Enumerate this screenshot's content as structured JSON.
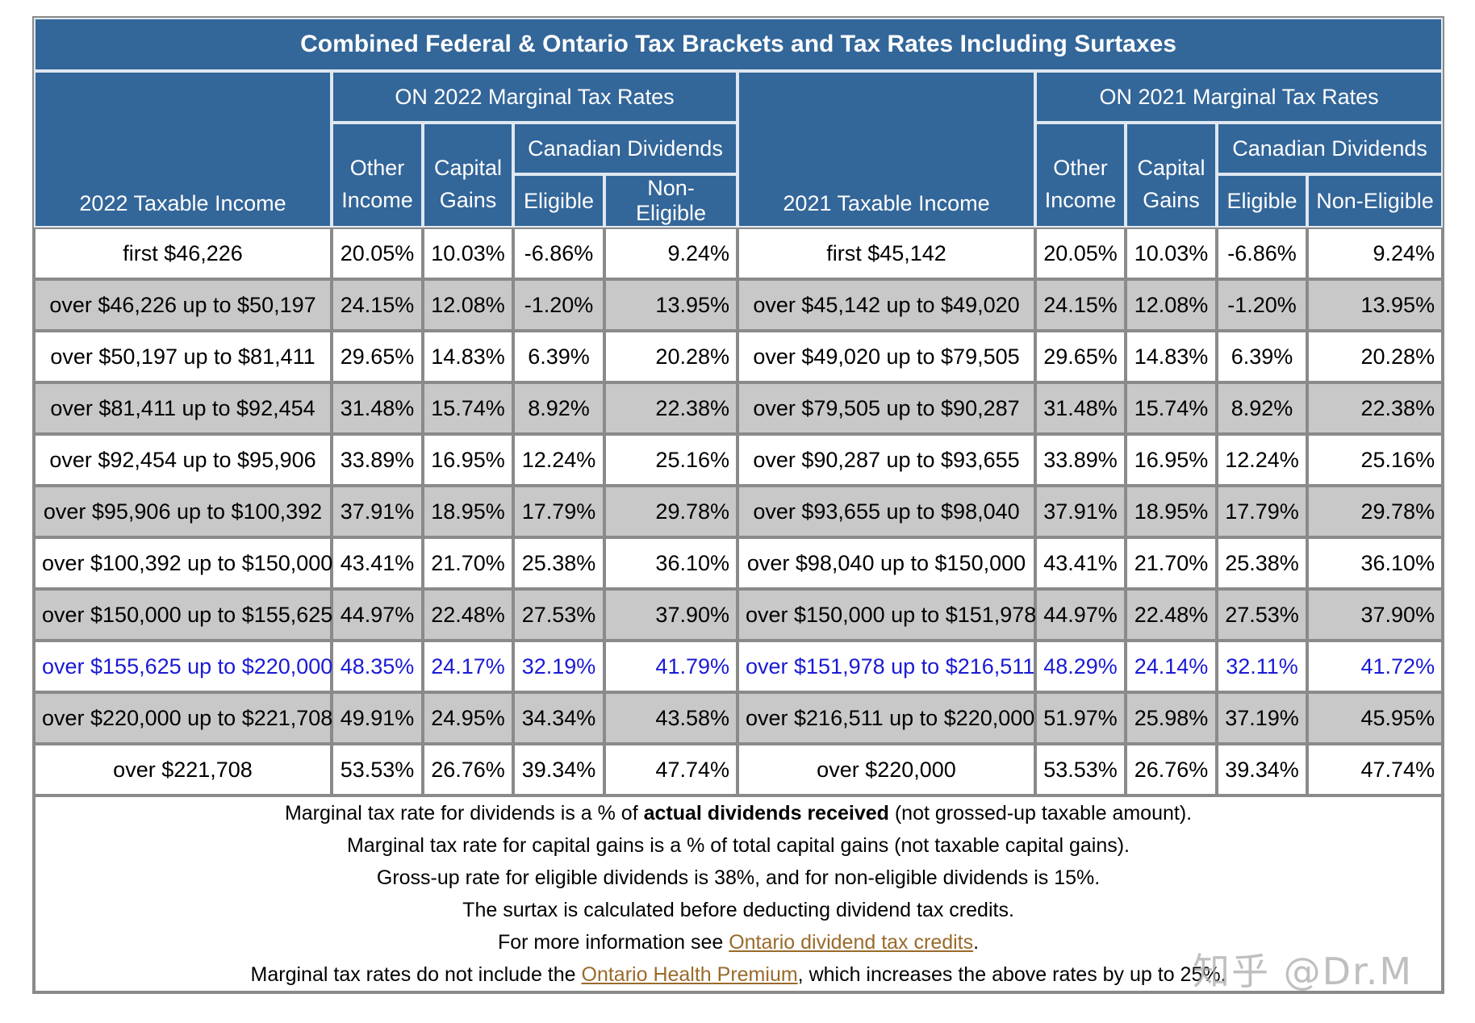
{
  "title": "Combined Federal & Ontario Tax Brackets and Tax Rates Including Surtaxes",
  "headers": {
    "income_2022": "2022 Taxable Income",
    "income_2021": "2021 Taxable Income",
    "group_2022": "ON 2022 Marginal Tax Rates",
    "group_2021": "ON 2021 Marginal Tax Rates",
    "other_income_1": "Other",
    "other_income_2": "Income",
    "capital_gains_1": "Capital",
    "capital_gains_2": "Gains",
    "canadian_dividends": "Canadian Dividends",
    "eligible": "Eligible",
    "non_eligible": "Non-Eligible"
  },
  "rows": [
    {
      "inc2022": "first $46,226",
      "r2022": [
        "20.05%",
        "10.03%",
        "-6.86%",
        "9.24%"
      ],
      "inc2021": "first $45,142",
      "r2021": [
        "20.05%",
        "10.03%",
        "-6.86%",
        "9.24%"
      ]
    },
    {
      "inc2022": "over $46,226 up to $50,197",
      "r2022": [
        "24.15%",
        "12.08%",
        "-1.20%",
        "13.95%"
      ],
      "inc2021": "over $45,142 up to $49,020",
      "r2021": [
        "24.15%",
        "12.08%",
        "-1.20%",
        "13.95%"
      ]
    },
    {
      "inc2022": "over $50,197 up to $81,411",
      "r2022": [
        "29.65%",
        "14.83%",
        "6.39%",
        "20.28%"
      ],
      "inc2021": "over $49,020 up to $79,505",
      "r2021": [
        "29.65%",
        "14.83%",
        "6.39%",
        "20.28%"
      ]
    },
    {
      "inc2022": "over $81,411 up to $92,454",
      "r2022": [
        "31.48%",
        "15.74%",
        "8.92%",
        "22.38%"
      ],
      "inc2021": "over $79,505 up to $90,287",
      "r2021": [
        "31.48%",
        "15.74%",
        "8.92%",
        "22.38%"
      ]
    },
    {
      "inc2022": "over $92,454 up to $95,906",
      "r2022": [
        "33.89%",
        "16.95%",
        "12.24%",
        "25.16%"
      ],
      "inc2021": "over $90,287 up to $93,655",
      "r2021": [
        "33.89%",
        "16.95%",
        "12.24%",
        "25.16%"
      ]
    },
    {
      "inc2022": "over $95,906 up to $100,392",
      "r2022": [
        "37.91%",
        "18.95%",
        "17.79%",
        "29.78%"
      ],
      "inc2021": "over $93,655 up to $98,040",
      "r2021": [
        "37.91%",
        "18.95%",
        "17.79%",
        "29.78%"
      ]
    },
    {
      "inc2022": "over $100,392 up to $150,000",
      "r2022": [
        "43.41%",
        "21.70%",
        "25.38%",
        "36.10%"
      ],
      "inc2021": "over $98,040 up to $150,000",
      "r2021": [
        "43.41%",
        "21.70%",
        "25.38%",
        "36.10%"
      ]
    },
    {
      "inc2022": "over $150,000 up to $155,625",
      "r2022": [
        "44.97%",
        "22.48%",
        "27.53%",
        "37.90%"
      ],
      "inc2021": "over $150,000 up to $151,978",
      "r2021": [
        "44.97%",
        "22.48%",
        "27.53%",
        "37.90%"
      ]
    },
    {
      "inc2022": "over $155,625 up to $220,000",
      "r2022": [
        "48.35%",
        "24.17%",
        "32.19%",
        "41.79%"
      ],
      "inc2021": "over $151,978 up to $216,511",
      "r2021": [
        "48.29%",
        "24.14%",
        "32.11%",
        "41.72%"
      ]
    },
    {
      "inc2022": "over $220,000 up to $221,708",
      "r2022": [
        "49.91%",
        "24.95%",
        "34.34%",
        "43.58%"
      ],
      "inc2021": "over $216,511 up to $220,000",
      "r2021": [
        "51.97%",
        "25.98%",
        "37.19%",
        "45.95%"
      ]
    },
    {
      "inc2022": "over $221,708",
      "r2022": [
        "53.53%",
        "26.76%",
        "39.34%",
        "47.74%"
      ],
      "inc2021": "over $220,000",
      "r2021": [
        "53.53%",
        "26.76%",
        "39.34%",
        "47.74%"
      ]
    }
  ],
  "row_styles": [
    "white",
    "grey",
    "white",
    "grey",
    "white",
    "grey",
    "white",
    "grey",
    "hl",
    "grey",
    "white"
  ],
  "highlight_color": "#1a1ad6",
  "header_color": "#336699",
  "grey_row_color": "#c8c8c8",
  "link_color": "#9a6a2a",
  "notes": {
    "line1_pre": "Marginal tax rate for dividends is a % of ",
    "line1_bold": "actual dividends received",
    "line1_post": " (not grossed-up taxable amount).",
    "line2": "Marginal tax rate for capital gains is a % of total capital gains (not taxable capital gains).",
    "line3": "Gross-up rate for eligible dividends is 38%, and for non-eligible dividends is 15%.",
    "line4": "The surtax is calculated before deducting dividend tax credits.",
    "line5_pre": "For more information see ",
    "line5_link": "Ontario dividend tax credits",
    "line5_post": ".",
    "line6_pre": "Marginal tax rates do not include the ",
    "line6_link": "Ontario Health Premium",
    "line6_post": ", which increases the above rates by up to 25%."
  },
  "watermark": "知乎 @Dr.M"
}
